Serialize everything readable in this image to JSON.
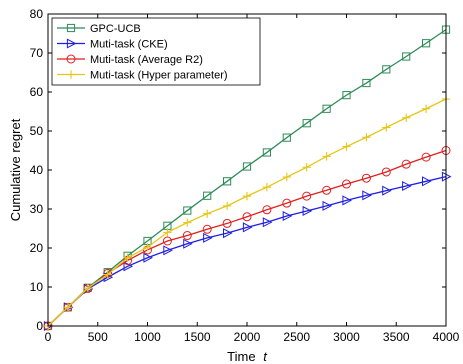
{
  "chart_data": {
    "type": "line",
    "xlabel": "Time",
    "xlabel_var": "t",
    "ylabel": "Cumulative  regret",
    "xlim": [
      0,
      4000
    ],
    "ylim": [
      0,
      80
    ],
    "xticks": [
      0,
      500,
      1000,
      1500,
      2000,
      2500,
      3000,
      3500,
      4000
    ],
    "yticks": [
      0,
      10,
      20,
      30,
      40,
      50,
      60,
      70,
      80
    ],
    "grid": false,
    "legend_position": "top-left",
    "series": [
      {
        "name": "GPC-UCB",
        "color": "#2e8b57",
        "marker": "square",
        "x": [
          0,
          200,
          400,
          600,
          800,
          1000,
          1200,
          1400,
          1600,
          1800,
          2000,
          2200,
          2400,
          2600,
          2800,
          3000,
          3200,
          3400,
          3600,
          3800,
          4000
        ],
        "y": [
          0,
          4.8,
          9.8,
          13.8,
          18.0,
          21.8,
          25.7,
          29.6,
          33.4,
          37.1,
          40.9,
          44.5,
          48.3,
          52.0,
          55.7,
          59.2,
          62.3,
          65.8,
          69.1,
          72.5,
          76.0
        ]
      },
      {
        "name": "Muti-task (CKE)",
        "color": "#1f1fe0",
        "marker": "triangle-right",
        "x": [
          0,
          200,
          400,
          600,
          800,
          1000,
          1200,
          1400,
          1600,
          1800,
          2000,
          2200,
          2400,
          2600,
          2800,
          3000,
          3200,
          3400,
          3600,
          3800,
          4000
        ],
        "y": [
          0,
          4.8,
          9.5,
          12.5,
          15.3,
          17.5,
          19.4,
          21.1,
          22.6,
          23.8,
          25.3,
          26.6,
          28.2,
          29.5,
          30.8,
          32.2,
          33.5,
          34.7,
          35.9,
          37.1,
          38.3
        ]
      },
      {
        "name": "Muti-task (Average R2)",
        "color": "#e01f1f",
        "marker": "circle",
        "x": [
          0,
          200,
          400,
          600,
          800,
          1000,
          1200,
          1400,
          1600,
          1800,
          2000,
          2200,
          2400,
          2600,
          2800,
          3000,
          3200,
          3400,
          3600,
          3800,
          4000
        ],
        "y": [
          0,
          4.8,
          9.6,
          13.5,
          16.8,
          19.5,
          21.8,
          23.2,
          24.8,
          26.3,
          28.0,
          29.8,
          31.5,
          33.3,
          34.8,
          36.4,
          37.9,
          39.5,
          41.5,
          43.3,
          45.0
        ]
      },
      {
        "name": "Muti-task (Hyper parameter)",
        "color": "#e6c619",
        "marker": "plus",
        "x": [
          0,
          200,
          400,
          600,
          800,
          1000,
          1200,
          1400,
          1600,
          1800,
          2000,
          2200,
          2400,
          2600,
          2800,
          3000,
          3200,
          3400,
          3600,
          3800,
          4000
        ],
        "y": [
          0,
          4.8,
          9.7,
          13.2,
          17.5,
          20.2,
          24.0,
          26.5,
          28.8,
          30.8,
          33.3,
          35.6,
          38.2,
          40.7,
          43.5,
          46.0,
          48.4,
          50.9,
          53.4,
          55.7,
          58.2
        ]
      }
    ]
  }
}
